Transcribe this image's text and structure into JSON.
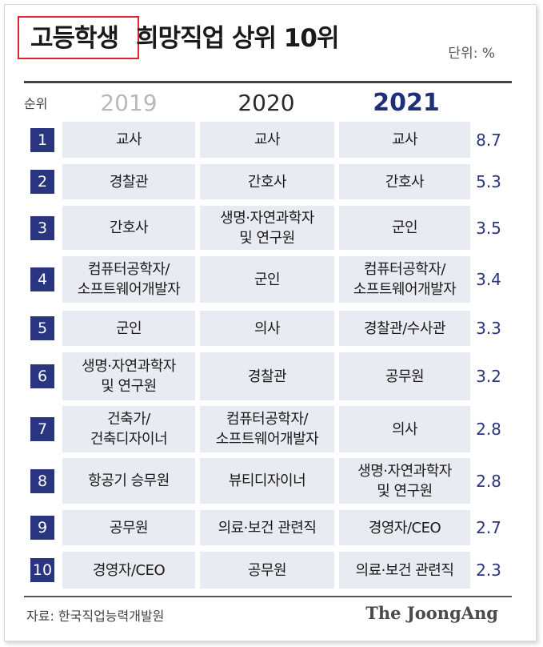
{
  "title": {
    "highlight": "고등학생",
    "rest": "희망직업 상위 10위"
  },
  "unit": "단위: %",
  "chart_data": {
    "type": "table",
    "rank_header": "순위",
    "years": [
      "2019",
      "2020",
      "2021"
    ],
    "rows": [
      {
        "rank": "1",
        "y2019": "교사",
        "y2020": "교사",
        "y2021": "교사",
        "pct2021": "8.7"
      },
      {
        "rank": "2",
        "y2019": "경찰관",
        "y2020": "간호사",
        "y2021": "간호사",
        "pct2021": "5.3"
      },
      {
        "rank": "3",
        "y2019": "간호사",
        "y2020": "생명·자연과학자\n및 연구원",
        "y2021": "군인",
        "pct2021": "3.5"
      },
      {
        "rank": "4",
        "y2019": "컴퓨터공학자/\n소프트웨어개발자",
        "y2020": "군인",
        "y2021": "컴퓨터공학자/\n소프트웨어개발자",
        "pct2021": "3.4"
      },
      {
        "rank": "5",
        "y2019": "군인",
        "y2020": "의사",
        "y2021": "경찰관/수사관",
        "pct2021": "3.3"
      },
      {
        "rank": "6",
        "y2019": "생명·자연과학자\n및 연구원",
        "y2020": "경찰관",
        "y2021": "공무원",
        "pct2021": "3.2"
      },
      {
        "rank": "7",
        "y2019": "건축가/\n건축디자이너",
        "y2020": "컴퓨터공학자/\n소프트웨어개발자",
        "y2021": "의사",
        "pct2021": "2.8"
      },
      {
        "rank": "8",
        "y2019": "항공기 승무원",
        "y2020": "뷰티디자이너",
        "y2021": "생명·자연과학자\n및 연구원",
        "pct2021": "2.8"
      },
      {
        "rank": "9",
        "y2019": "공무원",
        "y2020": "의료·보건 관련직",
        "y2021": "경영자/CEO",
        "pct2021": "2.7"
      },
      {
        "rank": "10",
        "y2019": "경영자/CEO",
        "y2020": "공무원",
        "y2021": "의료·보건 관련직",
        "pct2021": "2.3"
      }
    ],
    "values_2021": [
      8.7,
      5.3,
      3.5,
      3.4,
      3.3,
      3.2,
      2.8,
      2.8,
      2.7,
      2.3
    ]
  },
  "footer": {
    "source": "자료: 한국직업능력개발원",
    "logo": "The JoongAng"
  },
  "colors": {
    "accent": "#2a3580",
    "highlight_border": "#e0242c",
    "cell_bg": "#e8ebf1"
  }
}
